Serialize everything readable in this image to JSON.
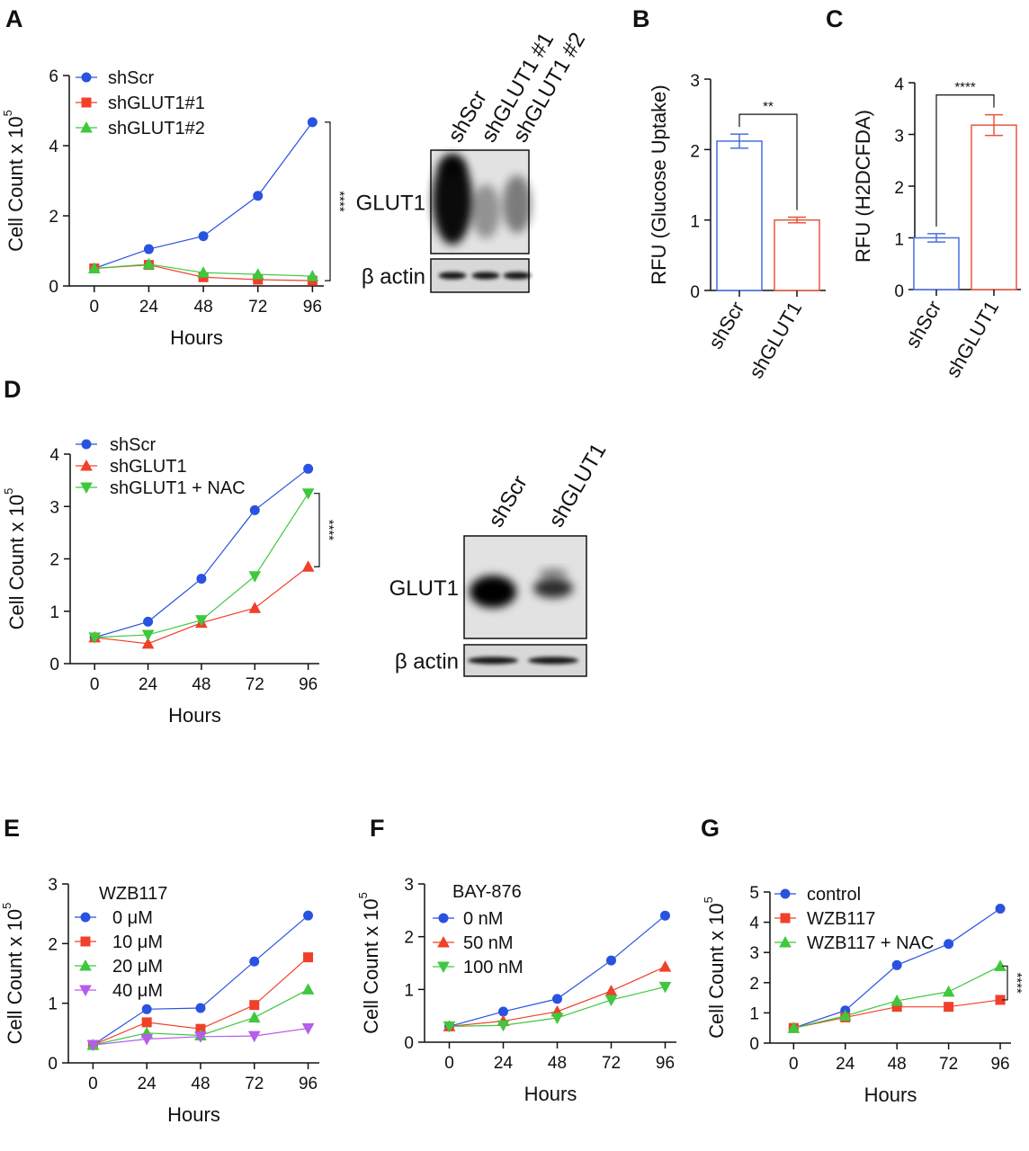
{
  "chart_data": [
    {
      "type": "line",
      "panel": "A",
      "xlabel": "Hours",
      "ylabel": "Cell Count x 10",
      "ylabel_sup": "5",
      "x": [
        0,
        24,
        48,
        72,
        96
      ],
      "xlim": [
        -11,
        101
      ],
      "xticks": [
        0,
        24,
        48,
        72,
        96
      ],
      "ylim": [
        0,
        6
      ],
      "yticks": [
        0,
        2,
        4,
        6
      ],
      "annotation": "****",
      "series": [
        {
          "name": "shScr",
          "color": "#2a52e0",
          "marker": "circle",
          "values": [
            0.5,
            1.05,
            1.42,
            2.57,
            4.67
          ]
        },
        {
          "name": "shGLUT1#1",
          "color": "#f0402a",
          "marker": "square",
          "values": [
            0.5,
            0.6,
            0.25,
            0.18,
            0.15
          ]
        },
        {
          "name": "shGLUT1#2",
          "color": "#3ec83e",
          "marker": "triangle",
          "values": [
            0.5,
            0.62,
            0.38,
            0.33,
            0.28
          ]
        }
      ]
    },
    {
      "type": "blot",
      "lanes": [
        "shScr",
        "shGLUT1 #1",
        "shGLUT1 #2"
      ],
      "rows": [
        "GLUT1",
        "β actin"
      ]
    },
    {
      "type": "bar",
      "panel": "B",
      "ylabel": "RFU (Glucose Uptake)",
      "categories": [
        "shScr",
        "shGLUT1"
      ],
      "values": [
        2.12,
        1.0
      ],
      "errors": [
        0.1,
        0.04
      ],
      "colors": [
        "#4a6ee0",
        "#e8553e"
      ],
      "ylim": [
        0,
        3
      ],
      "yticks": [
        0,
        1,
        2,
        3
      ],
      "annotation": "**"
    },
    {
      "type": "bar",
      "panel": "C",
      "ylabel": "RFU (H2DCFDA)",
      "categories": [
        "shScr",
        "shGLUT1"
      ],
      "values": [
        1.0,
        3.18
      ],
      "errors": [
        0.08,
        0.2
      ],
      "colors": [
        "#4a6ee0",
        "#e8553e"
      ],
      "ylim": [
        0,
        4
      ],
      "yticks": [
        0,
        1,
        2,
        3,
        4
      ],
      "annotation": "****"
    },
    {
      "type": "line",
      "panel": "D",
      "xlabel": "Hours",
      "ylabel": "Cell Count x 10",
      "ylabel_sup": "5",
      "x": [
        0,
        24,
        48,
        72,
        96
      ],
      "xlim": [
        -11,
        101
      ],
      "xticks": [
        0,
        24,
        48,
        72,
        96
      ],
      "ylim": [
        0,
        4
      ],
      "yticks": [
        0,
        1,
        2,
        3,
        4
      ],
      "annotation": "****",
      "series": [
        {
          "name": "shScr",
          "color": "#2a52e0",
          "marker": "circle",
          "values": [
            0.5,
            0.8,
            1.62,
            2.93,
            3.72
          ]
        },
        {
          "name": "shGLUT1",
          "color": "#f0402a",
          "marker": "triangle",
          "values": [
            0.5,
            0.38,
            0.78,
            1.06,
            1.85
          ]
        },
        {
          "name": "shGLUT1 + NAC",
          "color": "#3ec83e",
          "marker": "down-triangle",
          "values": [
            0.5,
            0.55,
            0.83,
            1.67,
            3.25
          ]
        }
      ]
    },
    {
      "type": "blot",
      "lanes": [
        "shScr",
        "shGLUT1"
      ],
      "rows": [
        "GLUT1",
        "β actin"
      ]
    },
    {
      "type": "line",
      "panel": "E",
      "xlabel": "Hours",
      "ylabel": "Cell Count x 10",
      "ylabel_sup": "5",
      "legend_title": "WZB117",
      "x": [
        0,
        24,
        48,
        72,
        96
      ],
      "xlim": [
        -11,
        101
      ],
      "xticks": [
        0,
        24,
        48,
        72,
        96
      ],
      "ylim": [
        0,
        3
      ],
      "yticks": [
        0,
        1,
        2,
        3
      ],
      "series": [
        {
          "name": "0 μM",
          "color": "#2a52e0",
          "marker": "circle",
          "values": [
            0.3,
            0.9,
            0.92,
            1.7,
            2.47
          ]
        },
        {
          "name": "10 μM",
          "color": "#f0402a",
          "marker": "square",
          "values": [
            0.3,
            0.68,
            0.57,
            0.97,
            1.77
          ]
        },
        {
          "name": "20 μM",
          "color": "#3ec83e",
          "marker": "triangle",
          "values": [
            0.3,
            0.5,
            0.46,
            0.76,
            1.23
          ]
        },
        {
          "name": "40 μM",
          "color": "#b45ee8",
          "marker": "down-triangle",
          "values": [
            0.3,
            0.4,
            0.44,
            0.45,
            0.58
          ]
        }
      ]
    },
    {
      "type": "line",
      "panel": "F",
      "xlabel": "Hours",
      "ylabel": "Cell Count x 10",
      "ylabel_sup": "5",
      "legend_title": "BAY-876",
      "x": [
        0,
        24,
        48,
        72,
        96
      ],
      "xlim": [
        -11,
        101
      ],
      "xticks": [
        0,
        24,
        48,
        72,
        96
      ],
      "ylim": [
        0,
        3
      ],
      "yticks": [
        0,
        1,
        2,
        3
      ],
      "series": [
        {
          "name": "0 nM",
          "color": "#2a52e0",
          "marker": "circle",
          "values": [
            0.3,
            0.58,
            0.82,
            1.55,
            2.4
          ]
        },
        {
          "name": "50 nM",
          "color": "#f0402a",
          "marker": "triangle",
          "values": [
            0.3,
            0.4,
            0.58,
            0.97,
            1.43
          ]
        },
        {
          "name": "100 nM",
          "color": "#3ec83e",
          "marker": "down-triangle",
          "values": [
            0.3,
            0.32,
            0.46,
            0.8,
            1.05
          ]
        }
      ]
    },
    {
      "type": "line",
      "panel": "G",
      "xlabel": "Hours",
      "ylabel": "Cell Count x 10",
      "ylabel_sup": "5",
      "x": [
        0,
        24,
        48,
        72,
        96
      ],
      "xlim": [
        -11,
        101
      ],
      "xticks": [
        0,
        24,
        48,
        72,
        96
      ],
      "ylim": [
        0,
        5
      ],
      "yticks": [
        0,
        1,
        2,
        3,
        4,
        5
      ],
      "annotation": "****",
      "series": [
        {
          "name": "control",
          "color": "#2a52e0",
          "marker": "circle",
          "values": [
            0.5,
            1.08,
            2.58,
            3.28,
            4.45
          ]
        },
        {
          "name": "WZB117",
          "color": "#f0402a",
          "marker": "square",
          "values": [
            0.5,
            0.85,
            1.2,
            1.2,
            1.43
          ]
        },
        {
          "name": "WZB117 + NAC",
          "color": "#3ec83e",
          "marker": "triangle",
          "values": [
            0.5,
            0.9,
            1.4,
            1.7,
            2.55
          ]
        }
      ]
    }
  ]
}
